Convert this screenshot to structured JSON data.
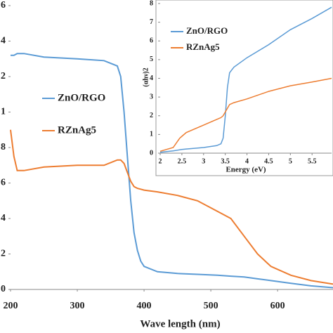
{
  "chart_data": [
    {
      "type": "line",
      "x_label": "Wave length (nm)",
      "x": [
        200,
        205,
        210,
        220,
        250,
        300,
        340,
        360,
        365,
        370,
        375,
        380,
        385,
        390,
        395,
        400,
        420,
        450,
        480,
        510,
        530,
        550,
        570,
        590,
        620,
        650,
        683
      ],
      "series": [
        {
          "name": "ZnO/RGO",
          "color": "#5b9bd5",
          "values": [
            1.32,
            1.32,
            1.33,
            1.33,
            1.31,
            1.3,
            1.29,
            1.26,
            1.2,
            1.0,
            0.75,
            0.5,
            0.32,
            0.22,
            0.16,
            0.13,
            0.1,
            0.09,
            0.085,
            0.08,
            0.075,
            0.07,
            0.06,
            0.05,
            0.035,
            0.02,
            0.01
          ]
        },
        {
          "name": "RZnAg5",
          "color": "#ed7d31",
          "values": [
            0.9,
            0.75,
            0.67,
            0.67,
            0.69,
            0.7,
            0.7,
            0.73,
            0.73,
            0.71,
            0.66,
            0.61,
            0.58,
            0.57,
            0.565,
            0.56,
            0.55,
            0.53,
            0.5,
            0.44,
            0.4,
            0.3,
            0.2,
            0.13,
            0.08,
            0.05,
            0.03
          ]
        }
      ],
      "xlim": [
        200,
        683
      ],
      "xticks": [
        200,
        300,
        400,
        500,
        600
      ],
      "ylim": [
        0,
        1.6
      ],
      "yticks": [
        0,
        {
          "value": 0.2,
          "label": "2"
        },
        {
          "value": 0.4,
          "label": "4"
        },
        {
          "value": 0.6,
          "label": "6"
        },
        {
          "value": 0.8,
          "label": "8"
        },
        1,
        {
          "value": 1.2,
          "label": "2"
        },
        {
          "value": 1.4,
          "label": "4"
        },
        {
          "value": 1.6,
          "label": "6"
        }
      ]
    },
    {
      "type": "line",
      "x_label": "Energy (eV)",
      "y_label": "(αhν)2",
      "x": [
        2,
        2.3,
        2.45,
        2.5,
        2.6,
        3,
        3.3,
        3.4,
        3.45,
        3.5,
        3.55,
        3.6,
        3.7,
        4,
        4.5,
        5,
        5.5,
        5.95
      ],
      "series": [
        {
          "name": "ZnO/RGO",
          "color": "#5b9bd5",
          "values": [
            0.05,
            0.12,
            0.18,
            0.2,
            0.22,
            0.3,
            0.4,
            0.5,
            0.8,
            2,
            3.5,
            4.3,
            4.6,
            5.1,
            5.8,
            6.6,
            7.2,
            7.8
          ]
        },
        {
          "name": "RZnAg5",
          "color": "#ed7d31",
          "values": [
            0.1,
            0.3,
            0.8,
            0.9,
            1.1,
            1.5,
            1.8,
            1.9,
            2.0,
            2.2,
            2.4,
            2.6,
            2.7,
            2.9,
            3.3,
            3.6,
            3.8,
            4.0
          ]
        }
      ],
      "xlim": [
        2,
        5.95
      ],
      "xticks": [
        2,
        2.5,
        3,
        3.5,
        4,
        4.5,
        5,
        5.5
      ],
      "ylim": [
        0,
        8
      ],
      "yticks": [
        0,
        1,
        2,
        3,
        4,
        5,
        6,
        7,
        8
      ]
    }
  ]
}
